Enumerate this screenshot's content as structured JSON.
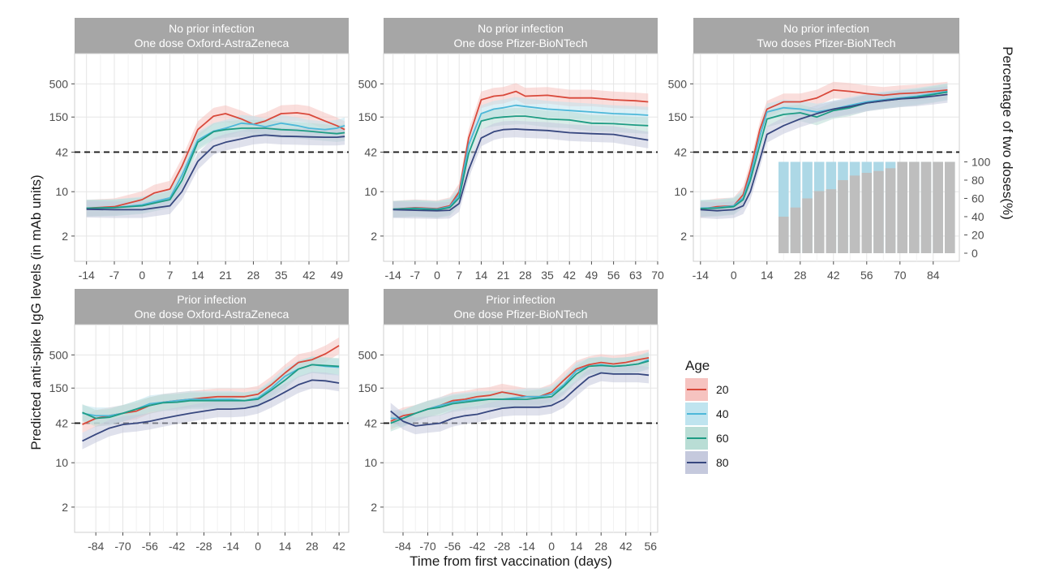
{
  "chart_data": {
    "type": "line",
    "x_axis_title": "Time from first vaccination (days)",
    "y_axis_title": "Predicted anti-spike IgG levels (in mAb units)",
    "y_ticks": [
      "2",
      "10",
      "42",
      "150",
      "500"
    ],
    "y_scale": "log",
    "ylim": [
      0.8,
      1500
    ],
    "threshold": 42,
    "legend": {
      "title": "Age",
      "entries": [
        {
          "label": "20",
          "color": "#d9493b",
          "band": "#f6c3c0"
        },
        {
          "label": "40",
          "color": "#4db8d9",
          "band": "#bfe4ef"
        },
        {
          "label": "60",
          "color": "#1e9c84",
          "band": "#b9ddd5"
        },
        {
          "label": "80",
          "color": "#37477f",
          "band": "#c5c9dd"
        }
      ]
    },
    "panels": [
      {
        "title1": "No prior infection",
        "title2": "One dose Oxford-AstraZeneca",
        "xlim": [
          -17,
          52
        ],
        "xticks": [
          "-14",
          "-7",
          "0",
          "7",
          "14",
          "21",
          "28",
          "35",
          "42",
          "49"
        ],
        "series": [
          {
            "name": "20",
            "x": [
              -14,
              -7,
              0,
              3,
              7,
              10,
              14,
              18,
              21,
              25,
              28,
              31,
              35,
              39,
              42,
              46,
              49,
              51
            ],
            "y": [
              5.5,
              5.8,
              7.5,
              9.5,
              11,
              25,
              95,
              155,
              170,
              140,
              115,
              130,
              170,
              175,
              165,
              130,
              110,
              95
            ]
          },
          {
            "name": "40",
            "x": [
              -14,
              -7,
              0,
              7,
              10,
              14,
              18,
              21,
              25,
              28,
              31,
              35,
              39,
              42,
              46,
              49,
              51
            ],
            "y": [
              5.5,
              5.6,
              6.2,
              8,
              18,
              65,
              90,
              100,
              120,
              115,
              105,
              120,
              110,
              100,
              95,
              100,
              110
            ]
          },
          {
            "name": "60",
            "x": [
              -14,
              -7,
              0,
              7,
              10,
              14,
              18,
              21,
              25,
              28,
              31,
              35,
              39,
              42,
              46,
              49,
              51
            ],
            "y": [
              5.5,
              5.6,
              6,
              7.5,
              15,
              60,
              88,
              95,
              100,
              100,
              100,
              95,
              93,
              90,
              85,
              82,
              85
            ]
          },
          {
            "name": "80",
            "x": [
              -14,
              -7,
              0,
              7,
              10,
              14,
              18,
              21,
              25,
              28,
              31,
              35,
              39,
              42,
              46,
              49,
              51
            ],
            "y": [
              5.3,
              5.2,
              5.2,
              6,
              10,
              30,
              52,
              60,
              68,
              75,
              78,
              75,
              74,
              73,
              72,
              72,
              74
            ]
          }
        ]
      },
      {
        "title1": "No prior infection",
        "title2": "One dose Pfizer-BioNTech",
        "xlim": [
          -17,
          70
        ],
        "xticks": [
          "-14",
          "-7",
          "0",
          "7",
          "14",
          "21",
          "28",
          "35",
          "42",
          "49",
          "56",
          "63",
          "70"
        ],
        "series": [
          {
            "name": "20",
            "x": [
              -14,
              -7,
              0,
              4,
              7,
              10,
              14,
              18,
              21,
              25,
              28,
              35,
              42,
              49,
              56,
              63,
              67
            ],
            "y": [
              5.3,
              5.6,
              5.4,
              6,
              10,
              70,
              280,
              320,
              330,
              380,
              320,
              330,
              300,
              300,
              280,
              270,
              260
            ]
          },
          {
            "name": "40",
            "x": [
              -14,
              -7,
              0,
              4,
              7,
              10,
              14,
              18,
              21,
              25,
              28,
              35,
              42,
              49,
              56,
              63,
              67
            ],
            "y": [
              5.3,
              5.5,
              5.3,
              5.8,
              9,
              55,
              170,
              200,
              210,
              230,
              220,
              200,
              190,
              180,
              170,
              165,
              160
            ]
          },
          {
            "name": "60",
            "x": [
              -14,
              -7,
              0,
              4,
              7,
              10,
              14,
              18,
              21,
              25,
              28,
              35,
              42,
              49,
              56,
              63,
              67
            ],
            "y": [
              5.3,
              5.4,
              5.2,
              5.6,
              8,
              40,
              130,
              145,
              150,
              155,
              155,
              140,
              135,
              120,
              118,
              112,
              110
            ]
          },
          {
            "name": "80",
            "x": [
              -14,
              -7,
              0,
              4,
              7,
              10,
              14,
              18,
              21,
              25,
              28,
              35,
              42,
              49,
              56,
              63,
              67
            ],
            "y": [
              5.2,
              5.1,
              5.0,
              5.1,
              6.5,
              22,
              70,
              88,
              95,
              97,
              95,
              92,
              85,
              82,
              80,
              70,
              65
            ]
          }
        ]
      },
      {
        "title1": "No prior infection",
        "title2": "Two doses Pfizer-BioNTech",
        "xlim": [
          -17,
          95
        ],
        "xticks": [
          "-14",
          "0",
          "14",
          "28",
          "42",
          "56",
          "70",
          "84"
        ],
        "series": [
          {
            "name": "20",
            "x": [
              -14,
              -7,
              0,
              4,
              7,
              11,
              14,
              21,
              28,
              35,
              42,
              49,
              56,
              63,
              70,
              77,
              84,
              90
            ],
            "y": [
              5.3,
              5.8,
              6,
              9,
              22,
              95,
              200,
              260,
              260,
              300,
              400,
              380,
              350,
              330,
              350,
              360,
              380,
              400
            ]
          },
          {
            "name": "40",
            "x": [
              -14,
              -7,
              0,
              4,
              7,
              11,
              14,
              21,
              28,
              35,
              42,
              49,
              56,
              63,
              70,
              77,
              84,
              90
            ],
            "y": [
              5.5,
              5.6,
              6,
              8,
              18,
              75,
              180,
              210,
              200,
              180,
              200,
              230,
              260,
              280,
              300,
              320,
              350,
              380
            ]
          },
          {
            "name": "60",
            "x": [
              -14,
              -7,
              0,
              4,
              7,
              11,
              14,
              21,
              28,
              35,
              42,
              49,
              56,
              63,
              70,
              77,
              84,
              90
            ],
            "y": [
              5.4,
              5.5,
              5.8,
              7.5,
              15,
              55,
              140,
              165,
              175,
              150,
              190,
              210,
              250,
              270,
              290,
              310,
              340,
              370
            ]
          },
          {
            "name": "80",
            "x": [
              -14,
              -7,
              0,
              4,
              7,
              11,
              14,
              21,
              28,
              35,
              42,
              49,
              56,
              63,
              70,
              77,
              84,
              90
            ],
            "y": [
              5.2,
              5.0,
              5.2,
              6,
              10,
              32,
              80,
              110,
              140,
              170,
              200,
              220,
              250,
              270,
              290,
              300,
              320,
              340
            ]
          }
        ],
        "inset": {
          "type": "stacked_bar",
          "y_axis_title": "Percentage of two doses(%)",
          "yticks": [
            "0",
            "20",
            "40",
            "60",
            "80",
            "100"
          ],
          "ylim": [
            0,
            100
          ],
          "x": [
            21,
            26,
            31,
            36,
            41,
            46,
            51,
            56,
            61,
            66,
            71,
            76,
            81,
            86,
            91
          ],
          "two_dose_pct": [
            40,
            50,
            60,
            68,
            70,
            80,
            85,
            88,
            90,
            93,
            100,
            100,
            100,
            100,
            100
          ],
          "colors": {
            "one_dose": "#add8e6",
            "two_dose": "#bebebe"
          }
        }
      },
      {
        "title1": "Prior infection",
        "title2": "One dose Oxford-AstraZeneca",
        "xlim": [
          -95,
          47
        ],
        "xticks": [
          "-84",
          "-70",
          "-56",
          "-42",
          "-28",
          "-14",
          "0",
          "14",
          "28",
          "42"
        ],
        "series": [
          {
            "name": "20",
            "x": [
              -91,
              -84,
              -77,
              -70,
              -63,
              -56,
              -49,
              -42,
              -35,
              -28,
              -21,
              -14,
              -7,
              0,
              7,
              14,
              21,
              28,
              35,
              42
            ],
            "y": [
              40,
              50,
              55,
              60,
              65,
              80,
              90,
              95,
              100,
              105,
              110,
              110,
              110,
              120,
              170,
              260,
              380,
              420,
              520,
              700
            ]
          },
          {
            "name": "40",
            "x": [
              -91,
              -84,
              -77,
              -70,
              -63,
              -56,
              -49,
              -42,
              -35,
              -28,
              -21,
              -14,
              -7,
              0,
              7,
              14,
              21,
              28,
              35,
              42
            ],
            "y": [
              60,
              55,
              55,
              60,
              70,
              85,
              90,
              95,
              100,
              100,
              100,
              100,
              95,
              105,
              150,
              230,
              300,
              350,
              330,
              320
            ]
          },
          {
            "name": "60",
            "x": [
              -91,
              -84,
              -77,
              -70,
              -63,
              -56,
              -49,
              -42,
              -35,
              -28,
              -21,
              -14,
              -7,
              0,
              7,
              14,
              21,
              28,
              35,
              42
            ],
            "y": [
              62,
              50,
              52,
              60,
              70,
              80,
              88,
              90,
              95,
              95,
              95,
              95,
              95,
              100,
              140,
              200,
              300,
              350,
              340,
              330
            ]
          },
          {
            "name": "80",
            "x": [
              -91,
              -84,
              -77,
              -70,
              -63,
              -56,
              -49,
              -42,
              -35,
              -28,
              -21,
              -14,
              -7,
              0,
              7,
              14,
              21,
              28,
              35,
              42
            ],
            "y": [
              22,
              28,
              35,
              40,
              42,
              45,
              50,
              55,
              60,
              65,
              70,
              70,
              72,
              80,
              100,
              130,
              170,
              200,
              195,
              180
            ]
          }
        ]
      },
      {
        "title1": "Prior infection",
        "title2": "One dose Pfizer-BioNTech",
        "xlim": [
          -95,
          60
        ],
        "xticks": [
          "-84",
          "-70",
          "-56",
          "-42",
          "-28",
          "-14",
          "0",
          "14",
          "28",
          "42",
          "56"
        ],
        "series": [
          {
            "name": "20",
            "x": [
              -91,
              -84,
              -77,
              -70,
              -63,
              -56,
              -49,
              -42,
              -35,
              -28,
              -21,
              -14,
              -7,
              0,
              7,
              14,
              21,
              28,
              35,
              42,
              49,
              55
            ],
            "y": [
              45,
              55,
              60,
              70,
              80,
              95,
              100,
              110,
              115,
              130,
              120,
              110,
              110,
              130,
              200,
              300,
              350,
              380,
              360,
              380,
              420,
              450
            ]
          },
          {
            "name": "40",
            "x": [
              -91,
              -84,
              -77,
              -70,
              -63,
              -56,
              -49,
              -42,
              -35,
              -28,
              -21,
              -14,
              -7,
              0,
              7,
              14,
              21,
              28,
              35,
              42,
              49,
              55
            ],
            "y": [
              50,
              50,
              60,
              70,
              80,
              90,
              95,
              100,
              100,
              100,
              105,
              110,
              110,
              120,
              170,
              280,
              330,
              350,
              330,
              340,
              360,
              420
            ]
          },
          {
            "name": "60",
            "x": [
              -91,
              -84,
              -77,
              -70,
              -63,
              -56,
              -49,
              -42,
              -35,
              -28,
              -21,
              -14,
              -7,
              0,
              7,
              14,
              21,
              28,
              35,
              42,
              49,
              55
            ],
            "y": [
              42,
              50,
              60,
              70,
              75,
              85,
              90,
              95,
              100,
              100,
              100,
              100,
              105,
              110,
              160,
              250,
              330,
              340,
              330,
              340,
              360,
              400
            ]
          },
          {
            "name": "80",
            "x": [
              -91,
              -84,
              -77,
              -70,
              -63,
              -56,
              -49,
              -42,
              -35,
              -28,
              -21,
              -14,
              -7,
              0,
              7,
              14,
              21,
              28,
              35,
              42,
              49,
              55
            ],
            "y": [
              65,
              45,
              38,
              40,
              42,
              50,
              55,
              58,
              65,
              72,
              75,
              75,
              75,
              80,
              100,
              150,
              220,
              260,
              250,
              250,
              250,
              240
            ]
          }
        ]
      }
    ]
  }
}
